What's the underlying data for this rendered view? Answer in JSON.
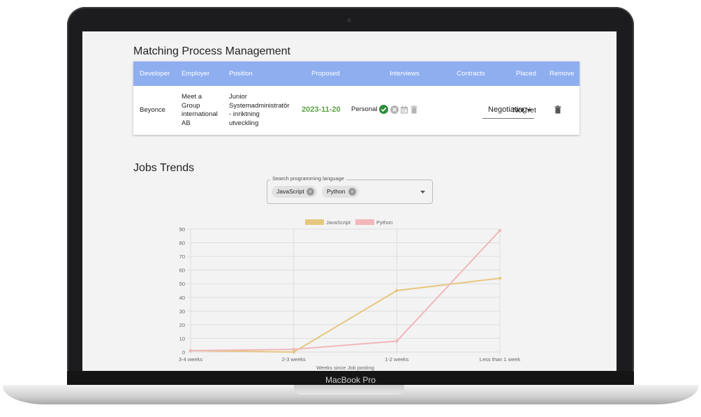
{
  "device": {
    "brand": "MacBook Pro"
  },
  "matching": {
    "title": "Matching Process Management",
    "headers": [
      "Developer",
      "Employer",
      "Position",
      "Proposed",
      "Interviews",
      "Contracts",
      "Placed",
      "Remove"
    ],
    "row": {
      "developer": "Beyonce",
      "employer": [
        "Meet a",
        "Group",
        "international",
        "AB"
      ],
      "position": [
        "Junior",
        "Systemadministratör",
        "- inriktning",
        "utveckling"
      ],
      "proposed": "2023-11-20",
      "interview_type": "Personal",
      "contract_status": "Negotiating",
      "placed": "Not Yet"
    }
  },
  "jobs": {
    "title": "Jobs Trends",
    "search_label": "Search programming language",
    "chips": [
      "JavaScript",
      "Python"
    ]
  },
  "colors": {
    "header": "#8eaef0",
    "javascript": "#e6c77e",
    "python": "#f1b7b9",
    "date": "#5aa443"
  },
  "chart_data": {
    "type": "line",
    "categories": [
      "3-4 weeks",
      "2-3 weeks",
      "1-2 weeks",
      "Less than 1 week"
    ],
    "series": [
      {
        "name": "JavaScript",
        "values": [
          1,
          0,
          45,
          54
        ]
      },
      {
        "name": "Python",
        "values": [
          1,
          2,
          8,
          89
        ]
      }
    ],
    "xlabel": "Weeks since Job posting",
    "ylabel": "",
    "ylim": [
      0,
      90
    ],
    "yticks": [
      0,
      10,
      20,
      30,
      40,
      50,
      60,
      70,
      80,
      90
    ],
    "grid": true,
    "legend": "top-center"
  }
}
